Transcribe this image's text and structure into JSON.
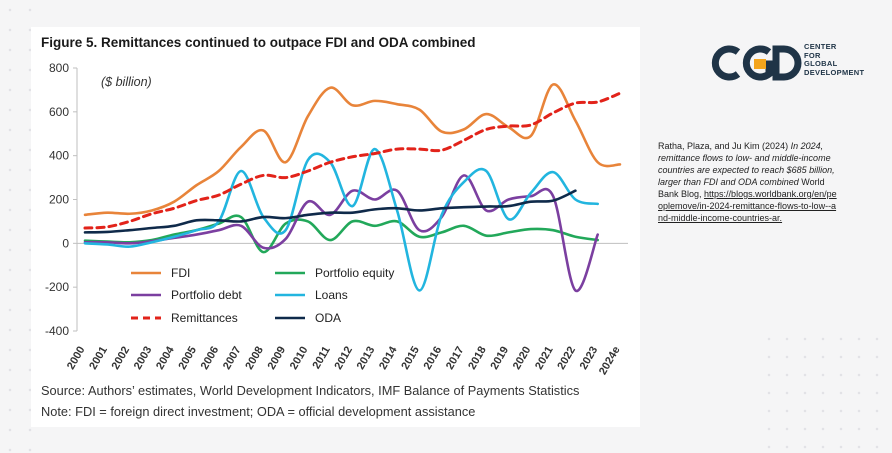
{
  "figure": {
    "title": "Figure 5. Remittances continued to outpace FDI and ODA combined",
    "source": "Source: Authors’ estimates, World Development Indicators, IMF Balance of Payments Statistics",
    "note": "Note: FDI = foreign direct investment; ODA = official development assistance"
  },
  "logo": {
    "mark": "CGD",
    "line1": "CENTER",
    "line2": "FOR",
    "line3": "GLOBAL",
    "line4": "DEVELOPMENT",
    "color_dark": "#1f3447",
    "color_accent": "#f4a51c"
  },
  "citation": {
    "authors": "Ratha, Plaza, and Ju Kim (2024)",
    "title": "In 2024, remittance flows to low- and middle-income countries are expected to reach $685 billion, larger than FDI and ODA combined",
    "publisher": "World Bank Blog,",
    "url": "https://blogs.worldbank.org/en/peoplemove/in-2024-remittance-flows-to-low--and-middle-income-countries-ar."
  },
  "chart_data": {
    "type": "line",
    "title": "Figure 5. Remittances continued to outpace FDI and ODA combined",
    "unit_label": "($ billion)",
    "xlabel": "",
    "ylabel": "",
    "ylim": [
      -400,
      800
    ],
    "yticks": [
      800,
      600,
      400,
      200,
      0,
      -200,
      -400
    ],
    "grid": false,
    "legend_position": "bottom-inside",
    "categories": [
      "2000",
      "2001",
      "2002",
      "2003",
      "2004",
      "2005",
      "2006",
      "2007",
      "2008",
      "2009",
      "2010",
      "2011",
      "2012",
      "2013",
      "2014",
      "2015",
      "2016",
      "2017",
      "2018",
      "2019",
      "2020",
      "2021",
      "2022",
      "2023",
      "2024e"
    ],
    "series": [
      {
        "name": "FDI",
        "color": "#e8843a",
        "style": "solid",
        "values": [
          130,
          140,
          135,
          150,
          190,
          265,
          330,
          440,
          515,
          370,
          580,
          710,
          630,
          650,
          635,
          610,
          510,
          520,
          590,
          530,
          490,
          725,
          560,
          370,
          360
        ]
      },
      {
        "name": "Portfolio equity",
        "color": "#22a85a",
        "style": "solid",
        "values": [
          12,
          8,
          5,
          15,
          40,
          60,
          90,
          120,
          -40,
          90,
          100,
          15,
          100,
          80,
          100,
          30,
          50,
          80,
          35,
          50,
          65,
          60,
          30,
          15,
          null
        ]
      },
      {
        "name": "Portfolio debt",
        "color": "#7b3fa0",
        "style": "solid",
        "values": [
          5,
          5,
          0,
          10,
          25,
          40,
          60,
          80,
          -20,
          20,
          190,
          130,
          240,
          200,
          240,
          60,
          120,
          310,
          150,
          200,
          215,
          215,
          -215,
          40,
          null
        ]
      },
      {
        "name": "Loans",
        "color": "#22b5df",
        "style": "solid",
        "values": [
          0,
          -5,
          -15,
          5,
          30,
          60,
          100,
          330,
          120,
          60,
          380,
          370,
          170,
          430,
          150,
          -215,
          130,
          280,
          330,
          110,
          230,
          325,
          200,
          180,
          null
        ]
      },
      {
        "name": "Remittances",
        "color": "#e2231a",
        "style": "dashed",
        "values": [
          70,
          75,
          100,
          135,
          160,
          195,
          220,
          270,
          310,
          300,
          330,
          370,
          395,
          410,
          430,
          430,
          425,
          470,
          520,
          535,
          540,
          595,
          640,
          645,
          685
        ]
      },
      {
        "name": "ODA",
        "color": "#0f2a4a",
        "style": "solid",
        "values": [
          50,
          52,
          60,
          70,
          80,
          105,
          105,
          100,
          120,
          115,
          130,
          140,
          140,
          155,
          160,
          150,
          160,
          165,
          168,
          170,
          190,
          195,
          240,
          null,
          null
        ]
      }
    ]
  }
}
